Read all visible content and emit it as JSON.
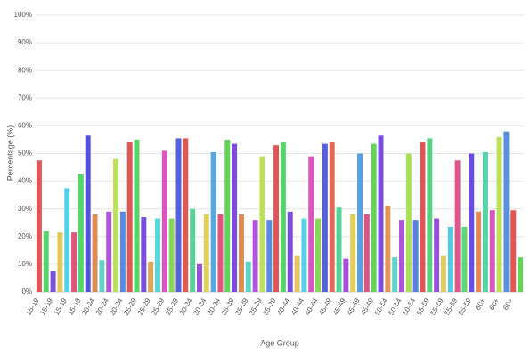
{
  "chart_data": {
    "type": "bar",
    "xlabel": "Age Group",
    "ylabel": "Percentage (%)",
    "categories": [
      "15-19",
      null,
      "15-19",
      null,
      "15-19",
      null,
      "15-19",
      null,
      "20-24",
      null,
      "20-24",
      null,
      "20-24",
      null,
      "25-29",
      null,
      "25-29",
      null,
      "25-29",
      null,
      "25-29",
      null,
      "30-34",
      null,
      "30-34",
      null,
      "30-34",
      null,
      "35-39",
      null,
      "35-39",
      null,
      "35-39",
      null,
      "35-39",
      null,
      "40-44",
      null,
      "40-44",
      null,
      "40-44",
      null,
      "45-49",
      null,
      "45-49",
      null,
      "45-49",
      null,
      "45-49",
      null,
      "50-54",
      null,
      "50-54",
      null,
      "50-54",
      null,
      "55-59",
      null,
      "55-59",
      null,
      "55-59",
      null,
      "55-59",
      null,
      "60+",
      null,
      "60+",
      null,
      "60+",
      null
    ],
    "values": [
      47.5,
      22,
      7.5,
      21.5,
      37.5,
      21.5,
      42.5,
      56.5,
      28,
      11.5,
      29,
      48,
      29,
      54,
      55,
      27,
      11,
      26.5,
      51,
      26.5,
      55.5,
      55.5,
      30,
      10,
      28,
      50.5,
      28,
      55,
      53.5,
      28,
      11,
      26,
      49,
      26,
      53,
      54,
      29,
      13,
      26.5,
      49,
      26.5,
      53.5,
      54,
      30.5,
      12,
      28,
      50,
      28,
      53.5,
      56.5,
      31,
      12.5,
      26,
      50,
      26,
      54,
      55.5,
      26.5,
      13,
      23.5,
      47.5,
      23.5,
      50,
      29,
      50.5,
      29.5,
      56,
      58,
      29.5,
      12.5
    ],
    "colors": [
      "#e05555",
      "#55d46a",
      "#7a4de0",
      "#e0c95a",
      "#58d0e3",
      "#e0557a",
      "#55d46a",
      "#5552d9",
      "#e08a55",
      "#5ad6c8",
      "#b055d9",
      "#bde05a",
      "#5a8ae0",
      "#e05555",
      "#55d46a",
      "#7a4de0",
      "#e0a855",
      "#5ad6d6",
      "#d955c0",
      "#8ad45a",
      "#5560d9",
      "#e05a55",
      "#55d49a",
      "#9a4de0",
      "#e0d05a",
      "#58a8e0",
      "#e05580",
      "#62d45a",
      "#7a4de0",
      "#e08a55",
      "#5ad6c8",
      "#b055d9",
      "#bde05a",
      "#5a8ae0",
      "#e05555",
      "#55d46a",
      "#7a4de0",
      "#e0c95a",
      "#58d0e3",
      "#d955c0",
      "#8ad45a",
      "#5560d9",
      "#e06a55",
      "#55d49a",
      "#a84de0",
      "#e0d05a",
      "#58a0e0",
      "#e05580",
      "#62d45a",
      "#7a4de0",
      "#e09a55",
      "#5ad6c8",
      "#b055d9",
      "#a8e05a",
      "#5a80e0",
      "#e05555",
      "#55d480",
      "#9a4de0",
      "#e0d05a",
      "#58c8e3",
      "#e0558a",
      "#62d47a",
      "#6a4de0",
      "#e08a55",
      "#55d4a8",
      "#d955c0",
      "#bde05a",
      "#5a90e0",
      "#e05555",
      "#62d45a"
    ],
    "ylim": [
      0,
      100
    ],
    "yticks": [
      {
        "value": 0,
        "label": "0%"
      },
      {
        "value": 10,
        "label": "10%"
      },
      {
        "value": 20,
        "label": "20%"
      },
      {
        "value": 30,
        "label": "30%"
      },
      {
        "value": 40,
        "label": "40%"
      },
      {
        "value": 50,
        "label": "50%"
      },
      {
        "value": 60,
        "label": "60%"
      },
      {
        "value": 70,
        "label": "70%"
      },
      {
        "value": 80,
        "label": "80%"
      },
      {
        "value": 90,
        "label": "90%"
      },
      {
        "value": 100,
        "label": "100%"
      }
    ],
    "grid": true
  }
}
